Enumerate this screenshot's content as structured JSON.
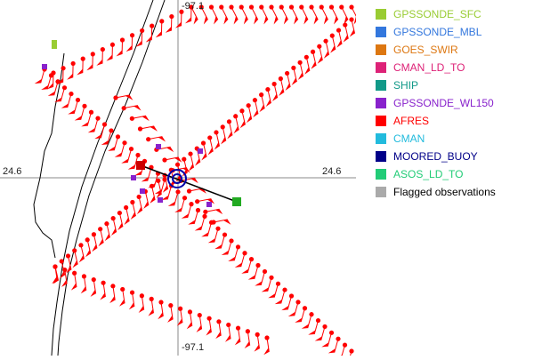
{
  "map": {
    "lat_label_left": "24.6",
    "lat_label_right": "24.6",
    "lon_label_top": "-97.1",
    "lon_label_bottom": "-97.1"
  },
  "legend": {
    "items": [
      {
        "label": "GPSSONDE_SFC",
        "color": "#99cc33"
      },
      {
        "label": "GPSSONDE_MBL",
        "color": "#3377dd"
      },
      {
        "label": "GOES_SWIR",
        "color": "#dd7711"
      },
      {
        "label": "CMAN_LD_TO",
        "color": "#dd2277"
      },
      {
        "label": "SHIP",
        "color": "#119988"
      },
      {
        "label": "GPSSONDE_WL150",
        "color": "#8822cc"
      },
      {
        "label": "AFRES",
        "color": "#ff0000"
      },
      {
        "label": "CMAN",
        "color": "#22bbdd"
      },
      {
        "label": "MOORED_BUOY",
        "color": "#000088"
      },
      {
        "label": "ASOS_LD_TO",
        "color": "#22cc77"
      },
      {
        "label": "Flagged observations",
        "color": "#aaaaaa"
      }
    ]
  }
}
